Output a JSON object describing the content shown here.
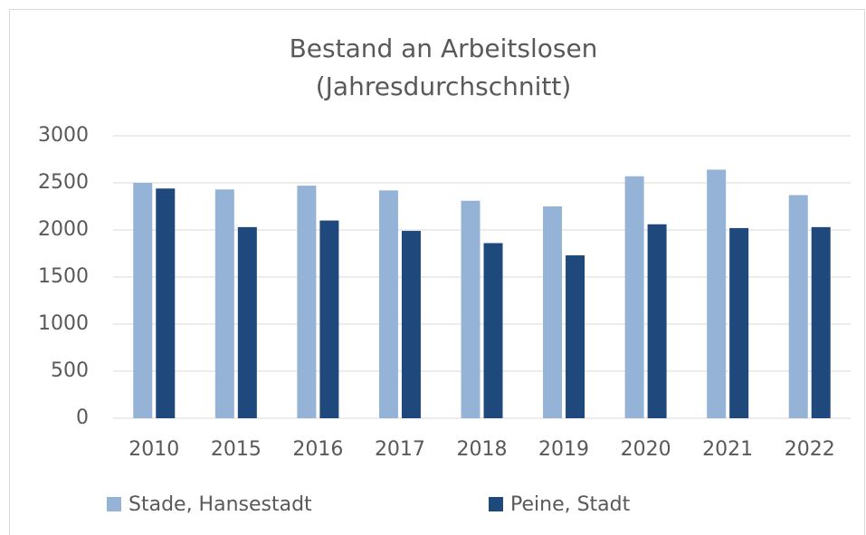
{
  "chart_data": {
    "type": "bar",
    "title": [
      "Bestand an Arbeitslosen",
      "(Jahresdurchschnitt)"
    ],
    "categories": [
      "2010",
      "2015",
      "2016",
      "2017",
      "2018",
      "2019",
      "2020",
      "2021",
      "2022"
    ],
    "series": [
      {
        "name": "Stade, Hansestadt",
        "color": "#95b3d7",
        "values": [
          2500,
          2430,
          2470,
          2420,
          2310,
          2250,
          2570,
          2640,
          2370
        ]
      },
      {
        "name": "Peine, Stadt",
        "color": "#1f497d",
        "values": [
          2440,
          2030,
          2100,
          1990,
          1860,
          1730,
          2060,
          2020,
          2030
        ]
      }
    ],
    "ylim": [
      0,
      3000
    ],
    "yticks": [
      0,
      500,
      1000,
      1500,
      2000,
      2500,
      3000
    ],
    "grid": true,
    "legend": "bottom"
  }
}
